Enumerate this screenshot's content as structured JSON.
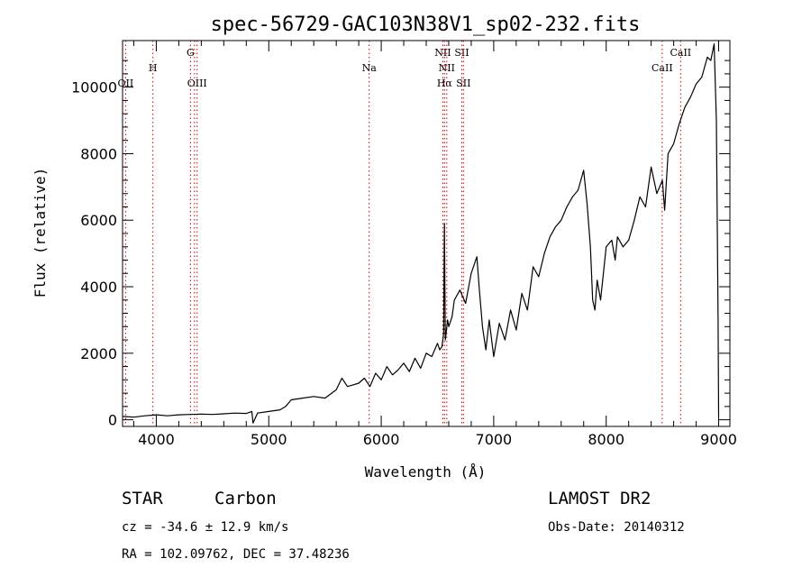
{
  "chart_data": {
    "type": "line",
    "title": "spec-56729-GAC103N38V1_sp02-232.fits",
    "xlabel": "Wavelength (Å)",
    "ylabel": "Flux (relative)",
    "xlim": [
      3700,
      9100
    ],
    "ylim": [
      -200,
      11400
    ],
    "x_ticks": [
      4000,
      5000,
      6000,
      7000,
      8000,
      9000
    ],
    "y_ticks": [
      0,
      2000,
      4000,
      6000,
      8000,
      10000
    ],
    "grid": false,
    "series": [
      {
        "color": "#000000",
        "x": [
          3700,
          3800,
          3900,
          4000,
          4100,
          4200,
          4300,
          4400,
          4500,
          4600,
          4700,
          4800,
          4850,
          4860,
          4900,
          5000,
          5100,
          5150,
          5200,
          5300,
          5400,
          5500,
          5600,
          5650,
          5700,
          5750,
          5800,
          5850,
          5900,
          5950,
          6000,
          6050,
          6100,
          6150,
          6200,
          6250,
          6300,
          6350,
          6400,
          6450,
          6500,
          6520,
          6540,
          6555,
          6562,
          6570,
          6590,
          6600,
          6630,
          6650,
          6700,
          6750,
          6800,
          6850,
          6870,
          6900,
          6930,
          6960,
          7000,
          7050,
          7100,
          7150,
          7200,
          7250,
          7300,
          7350,
          7400,
          7450,
          7500,
          7550,
          7600,
          7650,
          7700,
          7750,
          7800,
          7830,
          7860,
          7880,
          7900,
          7920,
          7950,
          8000,
          8050,
          8080,
          8100,
          8150,
          8200,
          8250,
          8300,
          8350,
          8400,
          8450,
          8500,
          8520,
          8550,
          8600,
          8650,
          8700,
          8750,
          8800,
          8850,
          8900,
          8930,
          8960,
          8980,
          8995,
          9000
        ],
        "y": [
          100,
          80,
          120,
          150,
          120,
          150,
          160,
          170,
          160,
          180,
          200,
          190,
          250,
          -100,
          200,
          250,
          300,
          400,
          600,
          650,
          700,
          650,
          900,
          1250,
          1000,
          1050,
          1100,
          1250,
          1000,
          1400,
          1200,
          1600,
          1350,
          1500,
          1700,
          1450,
          1850,
          1550,
          2000,
          1900,
          2300,
          2100,
          2200,
          2600,
          5900,
          2400,
          3000,
          2800,
          3100,
          3600,
          3900,
          3500,
          4400,
          4900,
          4000,
          2800,
          2100,
          3000,
          1900,
          2900,
          2400,
          3300,
          2700,
          3800,
          3300,
          4600,
          4300,
          5000,
          5500,
          5800,
          6000,
          6400,
          6700,
          6900,
          7500,
          6500,
          5200,
          3600,
          3300,
          4200,
          3600,
          5200,
          5400,
          4800,
          5500,
          5200,
          5400,
          6000,
          6700,
          6400,
          7600,
          6800,
          7200,
          6300,
          8000,
          8300,
          8900,
          9400,
          9700,
          10100,
          10300,
          10900,
          10800,
          11300,
          9000,
          3000,
          100
        ]
      }
    ],
    "line_markers": [
      {
        "wavelength": 3727,
        "label": "OII",
        "label_row": 3
      },
      {
        "wavelength": 3970,
        "label": "H",
        "label_row": 1
      },
      {
        "wavelength": 4304,
        "label": "G",
        "label_row": 0
      },
      {
        "wavelength": 4340,
        "label": "",
        "label_row": 0
      },
      {
        "wavelength": 4363,
        "label": "OIII",
        "label_row": 3
      },
      {
        "wavelength": 5893,
        "label": "Na",
        "label_row": 1
      },
      {
        "wavelength": 6548,
        "label": "NII",
        "label_row": 0
      },
      {
        "wavelength": 6563,
        "label": "Hα",
        "label_row": 3
      },
      {
        "wavelength": 6583,
        "label": "NII",
        "label_row": 1
      },
      {
        "wavelength": 6716,
        "label": "SII",
        "label_row": 0
      },
      {
        "wavelength": 6731,
        "label": "SII",
        "label_row": 3
      },
      {
        "wavelength": 8498,
        "label": "CaII",
        "label_row": 1
      },
      {
        "wavelength": 8662,
        "label": "CaII",
        "label_row": 0
      }
    ],
    "marker_color": "#cc0000"
  },
  "info": {
    "object_class": "STAR",
    "subclass": "Carbon",
    "survey": "LAMOST DR2",
    "cz": "cz = -34.6 ± 12.9 km/s",
    "obs_date": "Obs-Date: 20140312",
    "coords": "RA = 102.09762, DEC =  37.48236"
  }
}
